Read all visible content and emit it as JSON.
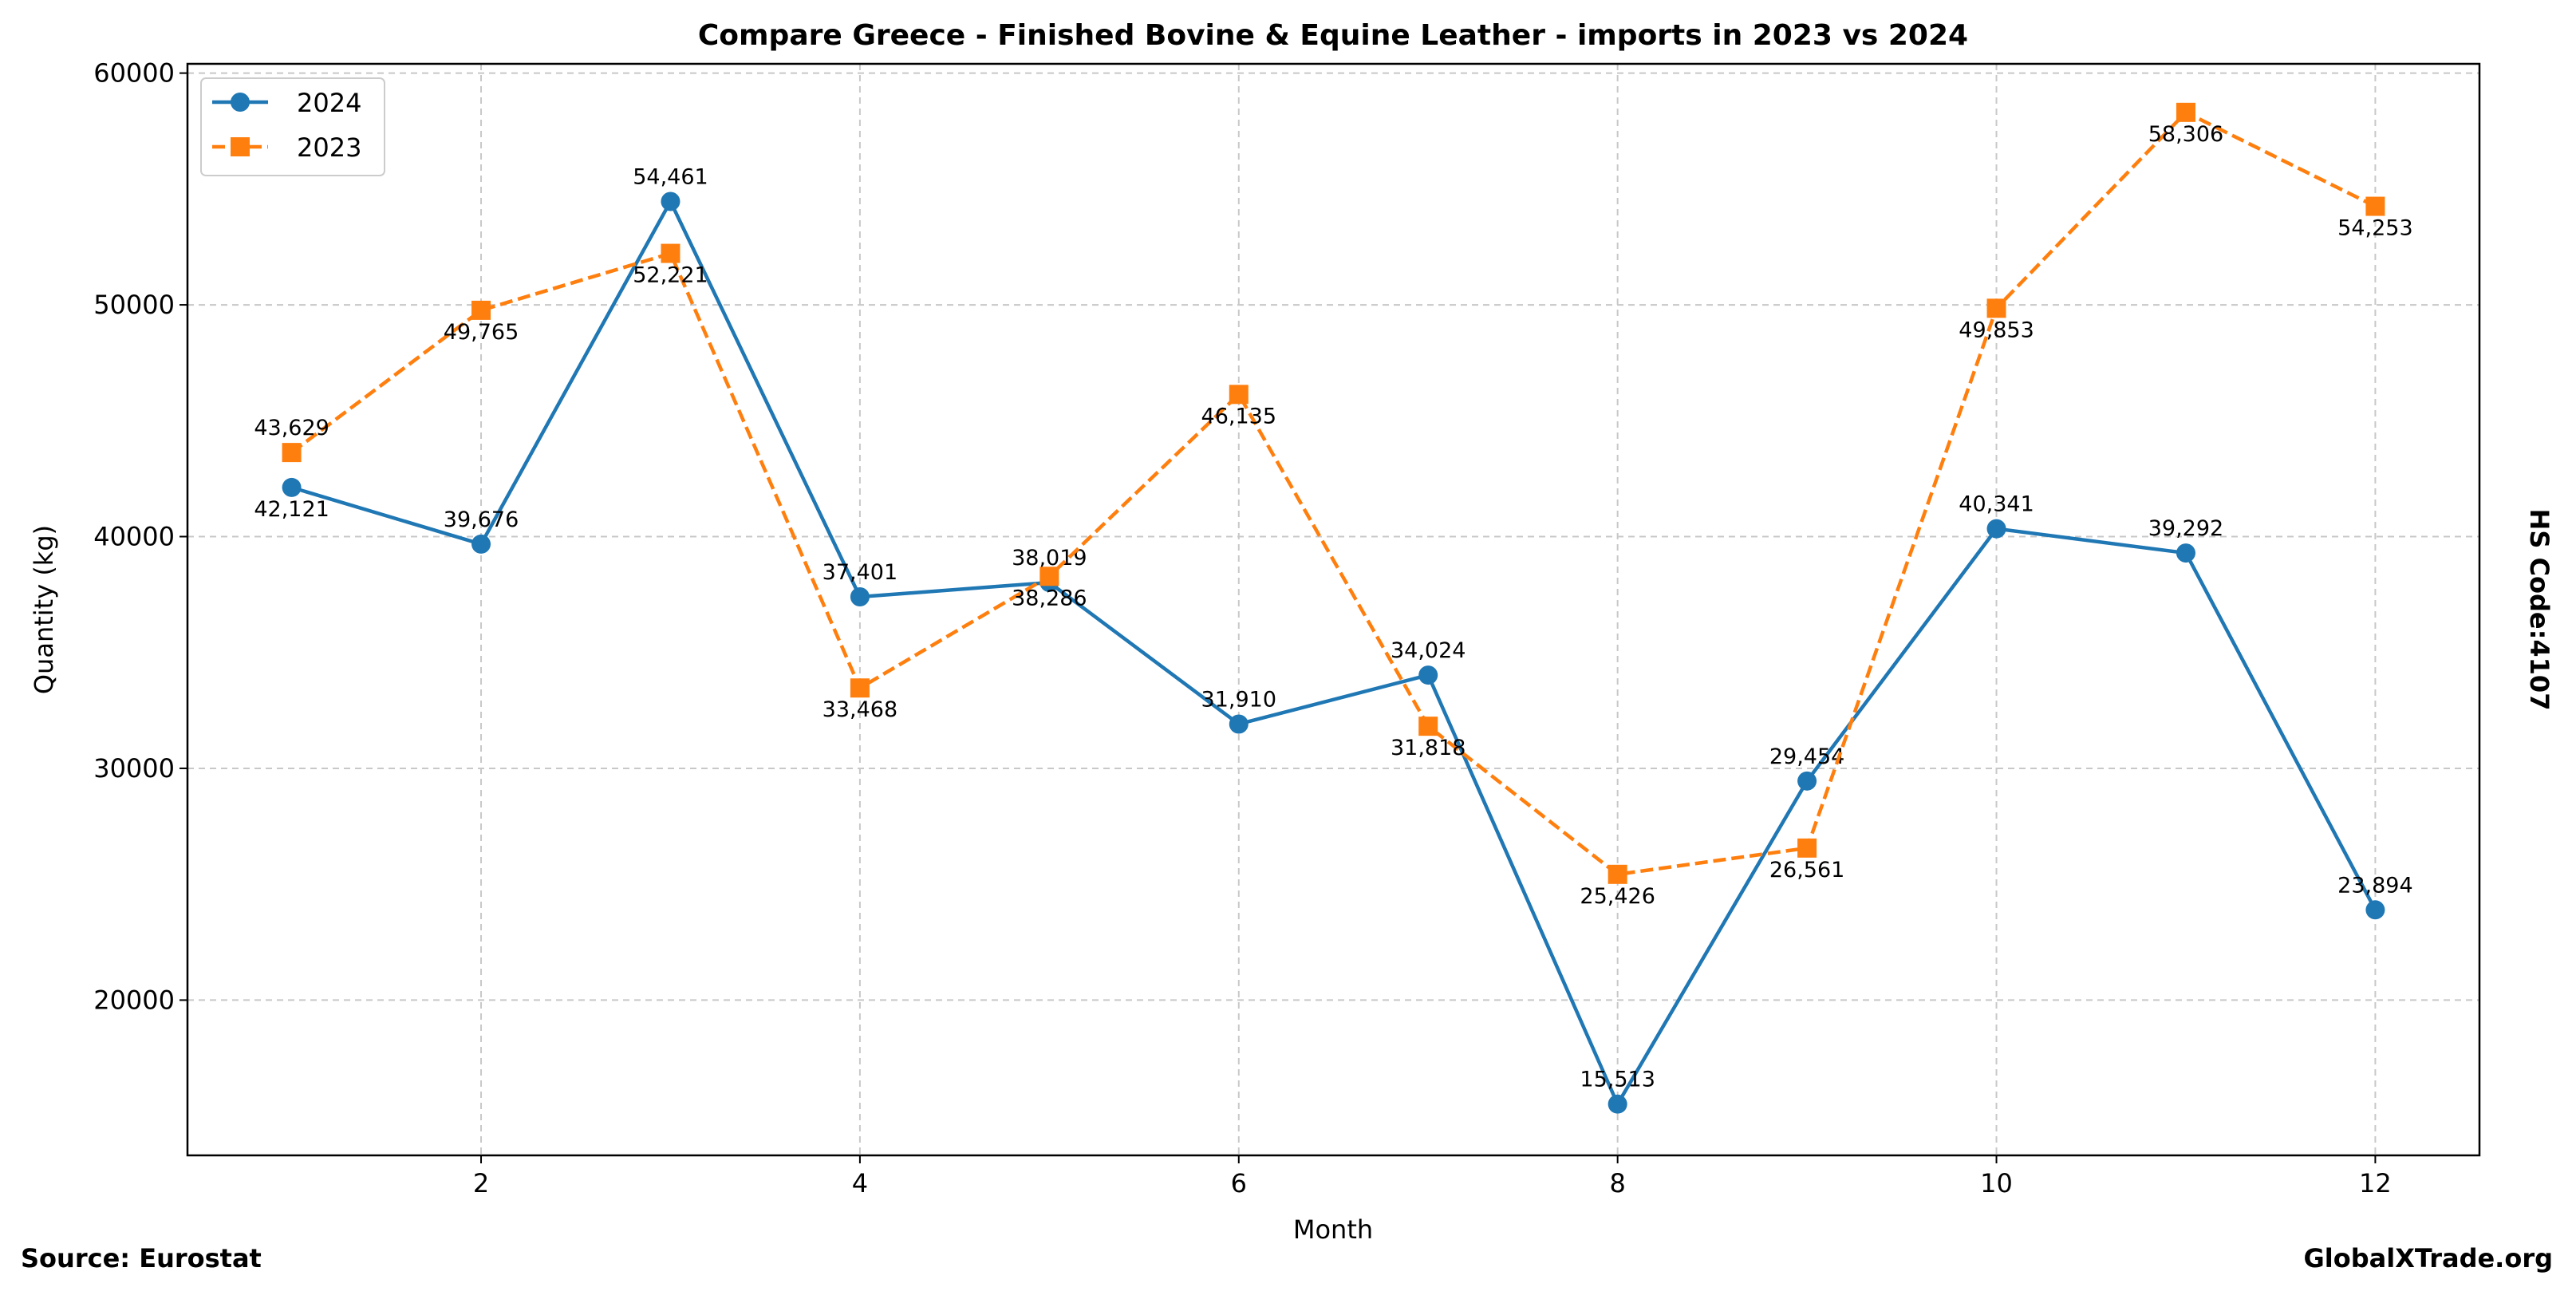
{
  "chart_data": {
    "type": "line",
    "title": "Compare Greece - Finished Bovine & Equine Leather - imports in 2023 vs 2024",
    "xlabel": "Month",
    "ylabel": "Quantity (kg)",
    "right_label": "HS Code:4107",
    "source": "Source: Eurostat",
    "brand": "GlobalXTrade.org",
    "xlim": [
      0.45,
      12.55
    ],
    "ylim": [
      13300,
      60400
    ],
    "xticks": [
      2,
      4,
      6,
      8,
      10,
      12
    ],
    "yticks": [
      20000,
      30000,
      40000,
      50000,
      60000
    ],
    "grid": true,
    "legend_placement": "top-left",
    "x": [
      1,
      2,
      3,
      4,
      5,
      6,
      7,
      8,
      9,
      10,
      11,
      12
    ],
    "series": [
      {
        "name": "2024",
        "color": "#1f77b4",
        "marker": "circle",
        "linestyle": "solid",
        "values": [
          42121,
          39676,
          54461,
          37401,
          38019,
          31910,
          34024,
          15513,
          29454,
          40341,
          39292,
          23894
        ],
        "labels": [
          "42,121",
          "39,676",
          "54,461",
          "37,401",
          "38,019",
          "31,910",
          "34,024",
          "15,513",
          "29,454",
          "40,341",
          "39,292",
          "23,894"
        ]
      },
      {
        "name": "2023",
        "color": "#ff7f0e",
        "marker": "square",
        "linestyle": "dashed",
        "values": [
          43629,
          49765,
          52221,
          33468,
          38286,
          46135,
          31818,
          25426,
          26561,
          49853,
          58306,
          54253
        ],
        "labels": [
          "43,629",
          "49,765",
          "52,221",
          "33,468",
          "38,286",
          "46,135",
          "31,818",
          "25,426",
          "26,561",
          "49,853",
          "58,306",
          "54,253"
        ]
      }
    ]
  }
}
